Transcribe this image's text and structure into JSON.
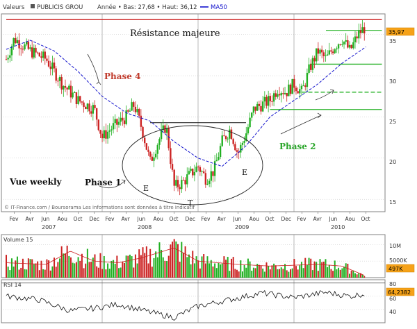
{
  "header": {
    "label_prefix": "Valeurs",
    "symbol": "PUBLICIS GROU",
    "range_text": "Année • Bas: 27,68 • Haut: 36,12",
    "ma_label": "MA50"
  },
  "price_panel": {
    "y_ticks": [
      "35",
      "30",
      "25",
      "20",
      "15"
    ],
    "last_price_label": "35,97",
    "watermark": "© IT-Finance.com / Boursorama Les informations sont données à titre indicatif",
    "annotations": {
      "resistance": "Résistance majeure",
      "phase4": "Phase 4",
      "phase1": "Phase 1",
      "phase2": "Phase 2",
      "view": "Vue weekly",
      "e_left": "E",
      "t_bottom": "T",
      "e_right": "E"
    }
  },
  "volume_panel": {
    "title": "Volume 15",
    "y_ticks": [
      "10M",
      "5000K"
    ],
    "last_volume_label": "497K"
  },
  "rsi_panel": {
    "title": "RSI 14",
    "y_ticks": [
      "80",
      "60",
      "40"
    ],
    "last_rsi_label": "64,2382"
  },
  "x_axis": {
    "month_labels": [
      "Fev",
      "Avr",
      "Jun",
      "Aou",
      "Oct",
      "Dec",
      "Fev",
      "Avr",
      "Jun",
      "Aou",
      "Oct",
      "Dec",
      "Fev",
      "Avr",
      "Jun",
      "Aou",
      "Oct",
      "Dec",
      "Fev",
      "Avr",
      "Jun",
      "Aou",
      "Oct"
    ],
    "year_labels": [
      "2007",
      "2008",
      "2009",
      "2010"
    ]
  },
  "colors": {
    "up": "#22b022",
    "down": "#cc2222",
    "ma50": "#1010cc",
    "resistance": "#cc2222",
    "support": "#22b022",
    "annotation_red": "#c03a2b",
    "annotation_green": "#2aa62a",
    "label_bg": "#f6a218",
    "grid": "#bfbfbf"
  },
  "chart_data": {
    "type": "candlestick",
    "title": "PUBLICIS GROU",
    "timeframe": "weekly",
    "x_range": [
      "2007-02",
      "2010-10"
    ],
    "ylim": [
      13.5,
      37.5
    ],
    "close_anchors": [
      {
        "date": "2007-01",
        "close": 32.0
      },
      {
        "date": "2007-02",
        "close": 34.5
      },
      {
        "date": "2007-04",
        "close": 33.0
      },
      {
        "date": "2007-06",
        "close": 32.0
      },
      {
        "date": "2007-08",
        "close": 29.0
      },
      {
        "date": "2007-10",
        "close": 27.0
      },
      {
        "date": "2007-12",
        "close": 26.0
      },
      {
        "date": "2008-01",
        "close": 22.5
      },
      {
        "date": "2008-02",
        "close": 23.5
      },
      {
        "date": "2008-04",
        "close": 25.0
      },
      {
        "date": "2008-05",
        "close": 26.5
      },
      {
        "date": "2008-06",
        "close": 23.5
      },
      {
        "date": "2008-07",
        "close": 19.5
      },
      {
        "date": "2008-08",
        "close": 22.0
      },
      {
        "date": "2008-09",
        "close": 24.0
      },
      {
        "date": "2008-10",
        "close": 16.5
      },
      {
        "date": "2008-11",
        "close": 17.0
      },
      {
        "date": "2008-12",
        "close": 18.0
      },
      {
        "date": "2009-01",
        "close": 19.0
      },
      {
        "date": "2009-02",
        "close": 17.5
      },
      {
        "date": "2009-03",
        "close": 18.5
      },
      {
        "date": "2009-04",
        "close": 22.0
      },
      {
        "date": "2009-05",
        "close": 23.5
      },
      {
        "date": "2009-06",
        "close": 20.5
      },
      {
        "date": "2009-07",
        "close": 23.0
      },
      {
        "date": "2009-08",
        "close": 26.0
      },
      {
        "date": "2009-10",
        "close": 27.0
      },
      {
        "date": "2009-11",
        "close": 28.5
      },
      {
        "date": "2009-12",
        "close": 28.0
      },
      {
        "date": "2010-01",
        "close": 29.0
      },
      {
        "date": "2010-02",
        "close": 28.0
      },
      {
        "date": "2010-03",
        "close": 31.0
      },
      {
        "date": "2010-04",
        "close": 33.0
      },
      {
        "date": "2010-05",
        "close": 32.0
      },
      {
        "date": "2010-06",
        "close": 33.5
      },
      {
        "date": "2010-07",
        "close": 34.5
      },
      {
        "date": "2010-08",
        "close": 33.0
      },
      {
        "date": "2010-09",
        "close": 35.0
      },
      {
        "date": "2010-10",
        "close": 35.97
      }
    ],
    "ma50_anchors": [
      {
        "date": "2007-01",
        "value": 33.2
      },
      {
        "date": "2007-04",
        "value": 34.3
      },
      {
        "date": "2007-07",
        "value": 33.0
      },
      {
        "date": "2007-10",
        "value": 30.5
      },
      {
        "date": "2008-01",
        "value": 27.5
      },
      {
        "date": "2008-04",
        "value": 25.5
      },
      {
        "date": "2008-07",
        "value": 24.5
      },
      {
        "date": "2008-10",
        "value": 22.0
      },
      {
        "date": "2009-01",
        "value": 20.0
      },
      {
        "date": "2009-04",
        "value": 19.0
      },
      {
        "date": "2009-07",
        "value": 21.5
      },
      {
        "date": "2009-10",
        "value": 25.0
      },
      {
        "date": "2010-01",
        "value": 27.0
      },
      {
        "date": "2010-04",
        "value": 29.0
      },
      {
        "date": "2010-07",
        "value": 31.5
      },
      {
        "date": "2010-10",
        "value": 33.5
      }
    ],
    "horizontal_levels": [
      {
        "value": 36.8,
        "style": "resistance",
        "from": "2007-01",
        "to": "2010-12"
      },
      {
        "value": 35.5,
        "style": "support",
        "from": "2010-05",
        "to": "2010-12"
      },
      {
        "value": 31.4,
        "style": "support",
        "from": "2010-03",
        "to": "2010-12"
      },
      {
        "value": 28.0,
        "style": "support-dashed",
        "from": "2010-02",
        "to": "2010-12"
      },
      {
        "value": 25.9,
        "style": "support",
        "from": "2009-10",
        "to": "2010-12"
      },
      {
        "value": 24.3,
        "style": "neckline",
        "from": "2008-07",
        "to": "2009-07"
      }
    ],
    "volume_ylim": [
      0,
      13000000
    ],
    "volume_anchors": [
      {
        "date": "2007-01",
        "value": 4500000
      },
      {
        "date": "2007-06",
        "value": 4000000
      },
      {
        "date": "2007-09",
        "value": 8000000
      },
      {
        "date": "2007-12",
        "value": 5000000
      },
      {
        "date": "2008-03",
        "value": 4500000
      },
      {
        "date": "2008-06",
        "value": 6000000
      },
      {
        "date": "2008-10",
        "value": 9000000
      },
      {
        "date": "2009-01",
        "value": 5000000
      },
      {
        "date": "2009-06",
        "value": 4000000
      },
      {
        "date": "2009-10",
        "value": 3500000
      },
      {
        "date": "2010-04",
        "value": 4000000
      },
      {
        "date": "2010-07",
        "value": 3500000
      },
      {
        "date": "2010-10",
        "value": 497000
      }
    ],
    "rsi_ylim": [
      20,
      85
    ],
    "rsi_anchors": [
      {
        "date": "2007-01",
        "value": 60
      },
      {
        "date": "2007-05",
        "value": 55
      },
      {
        "date": "2007-09",
        "value": 38
      },
      {
        "date": "2007-12",
        "value": 42
      },
      {
        "date": "2008-03",
        "value": 48
      },
      {
        "date": "2008-07",
        "value": 36
      },
      {
        "date": "2008-10",
        "value": 28
      },
      {
        "date": "2009-01",
        "value": 45
      },
      {
        "date": "2009-05",
        "value": 55
      },
      {
        "date": "2009-09",
        "value": 65
      },
      {
        "date": "2010-01",
        "value": 58
      },
      {
        "date": "2010-05",
        "value": 66
      },
      {
        "date": "2010-08",
        "value": 60
      },
      {
        "date": "2010-10",
        "value": 64.2382
      }
    ]
  }
}
